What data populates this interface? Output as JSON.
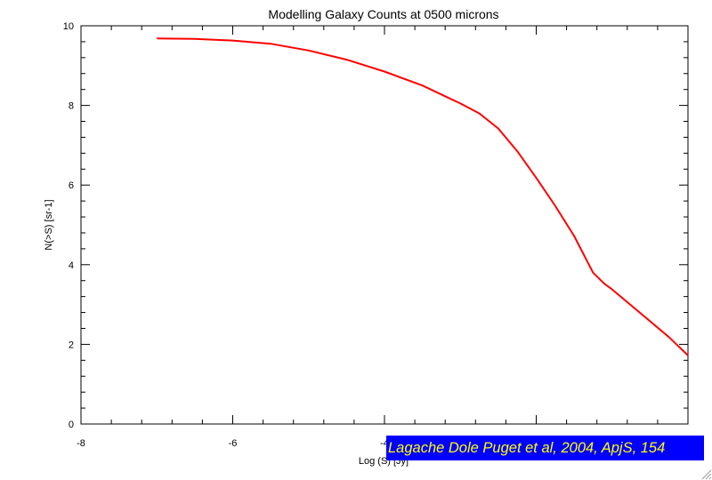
{
  "chart_data": {
    "type": "line",
    "title": "Modelling Galaxy Counts at 0500 microns",
    "xlabel": "Log (S) [Jy]",
    "ylabel": "N(>S) [sr-1]",
    "xlim": [
      -8,
      0
    ],
    "ylim": [
      0,
      10
    ],
    "xticks": [
      -8,
      -6,
      -4,
      -2,
      0
    ],
    "xtick_labels": [
      "-8",
      "-6",
      "-4",
      "",
      ""
    ],
    "yticks": [
      0,
      2,
      4,
      6,
      8,
      10
    ],
    "ytick_labels": [
      "0",
      "2",
      "4",
      "6",
      "8",
      "10"
    ],
    "grid": false,
    "series": [
      {
        "color": "#ff0000",
        "x": [
          -7.0,
          -6.5,
          -6.0,
          -5.5,
          -5.0,
          -4.5,
          -4.0,
          -3.5,
          -3.0,
          -2.75,
          -2.5,
          -2.25,
          -2.0,
          -1.75,
          -1.5,
          -1.25,
          -1.1,
          -1.0,
          -0.75,
          -0.5,
          -0.25,
          0.0
        ],
        "y": [
          9.68,
          9.67,
          9.63,
          9.55,
          9.38,
          9.15,
          8.85,
          8.5,
          8.05,
          7.8,
          7.42,
          6.85,
          6.18,
          5.48,
          4.72,
          3.8,
          3.52,
          3.38,
          2.98,
          2.58,
          2.18,
          1.72
        ]
      }
    ]
  },
  "credit": {
    "text": "Lagache Dole Puget et al, 2004, ApjS, 154"
  },
  "colors": {
    "curve": "#ff0000",
    "banner_background": "#0000ff",
    "banner_text": "#ffff00"
  }
}
